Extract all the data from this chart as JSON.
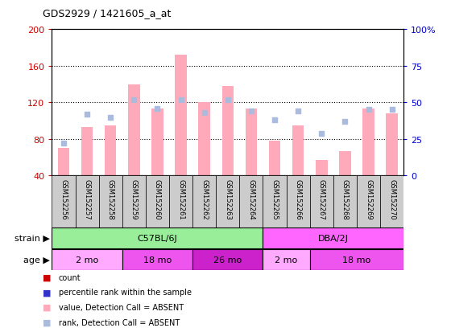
{
  "title": "GDS2929 / 1421605_a_at",
  "samples": [
    "GSM152256",
    "GSM152257",
    "GSM152258",
    "GSM152259",
    "GSM152260",
    "GSM152261",
    "GSM152262",
    "GSM152263",
    "GSM152264",
    "GSM152265",
    "GSM152266",
    "GSM152267",
    "GSM152268",
    "GSM152269",
    "GSM152270"
  ],
  "bar_values": [
    70,
    93,
    95,
    140,
    113,
    172,
    120,
    138,
    113,
    78,
    95,
    57,
    67,
    113,
    108
  ],
  "rank_values": [
    22,
    42,
    40,
    52,
    46,
    52,
    43,
    52,
    44,
    38,
    44,
    29,
    37,
    45,
    45
  ],
  "ylim_left": [
    40,
    200
  ],
  "ylim_right": [
    0,
    100
  ],
  "yticks_left": [
    40,
    80,
    120,
    160,
    200
  ],
  "yticks_right": [
    0,
    25,
    50,
    75,
    100
  ],
  "ytick_labels_right": [
    "0",
    "25",
    "50",
    "75",
    "100%"
  ],
  "strain_groups": [
    {
      "label": "C57BL/6J",
      "start": 0,
      "end": 9,
      "color": "#99ee99"
    },
    {
      "label": "DBA/2J",
      "start": 9,
      "end": 15,
      "color": "#ff66ff"
    }
  ],
  "age_groups": [
    {
      "label": "2 mo",
      "start": 0,
      "end": 3,
      "color": "#ffaaff"
    },
    {
      "label": "18 mo",
      "start": 3,
      "end": 6,
      "color": "#ee55ee"
    },
    {
      "label": "26 mo",
      "start": 6,
      "end": 9,
      "color": "#cc22cc"
    },
    {
      "label": "2 mo",
      "start": 9,
      "end": 11,
      "color": "#ffaaff"
    },
    {
      "label": "18 mo",
      "start": 11,
      "end": 15,
      "color": "#ee55ee"
    }
  ],
  "bar_color_absent": "#ffaabb",
  "rank_color_absent": "#aabbdd",
  "bar_width": 0.5,
  "legend_items": [
    {
      "label": "count",
      "color": "#cc0000"
    },
    {
      "label": "percentile rank within the sample",
      "color": "#3333cc"
    },
    {
      "label": "value, Detection Call = ABSENT",
      "color": "#ffaabb"
    },
    {
      "label": "rank, Detection Call = ABSENT",
      "color": "#aabbdd"
    }
  ],
  "background_color": "#ffffff",
  "plot_bg_color": "#ffffff",
  "xlabel_color": "#cc0000",
  "ylabel_right_color": "#0000cc",
  "strain_label": "strain",
  "age_label": "age",
  "label_box_color": "#cccccc"
}
